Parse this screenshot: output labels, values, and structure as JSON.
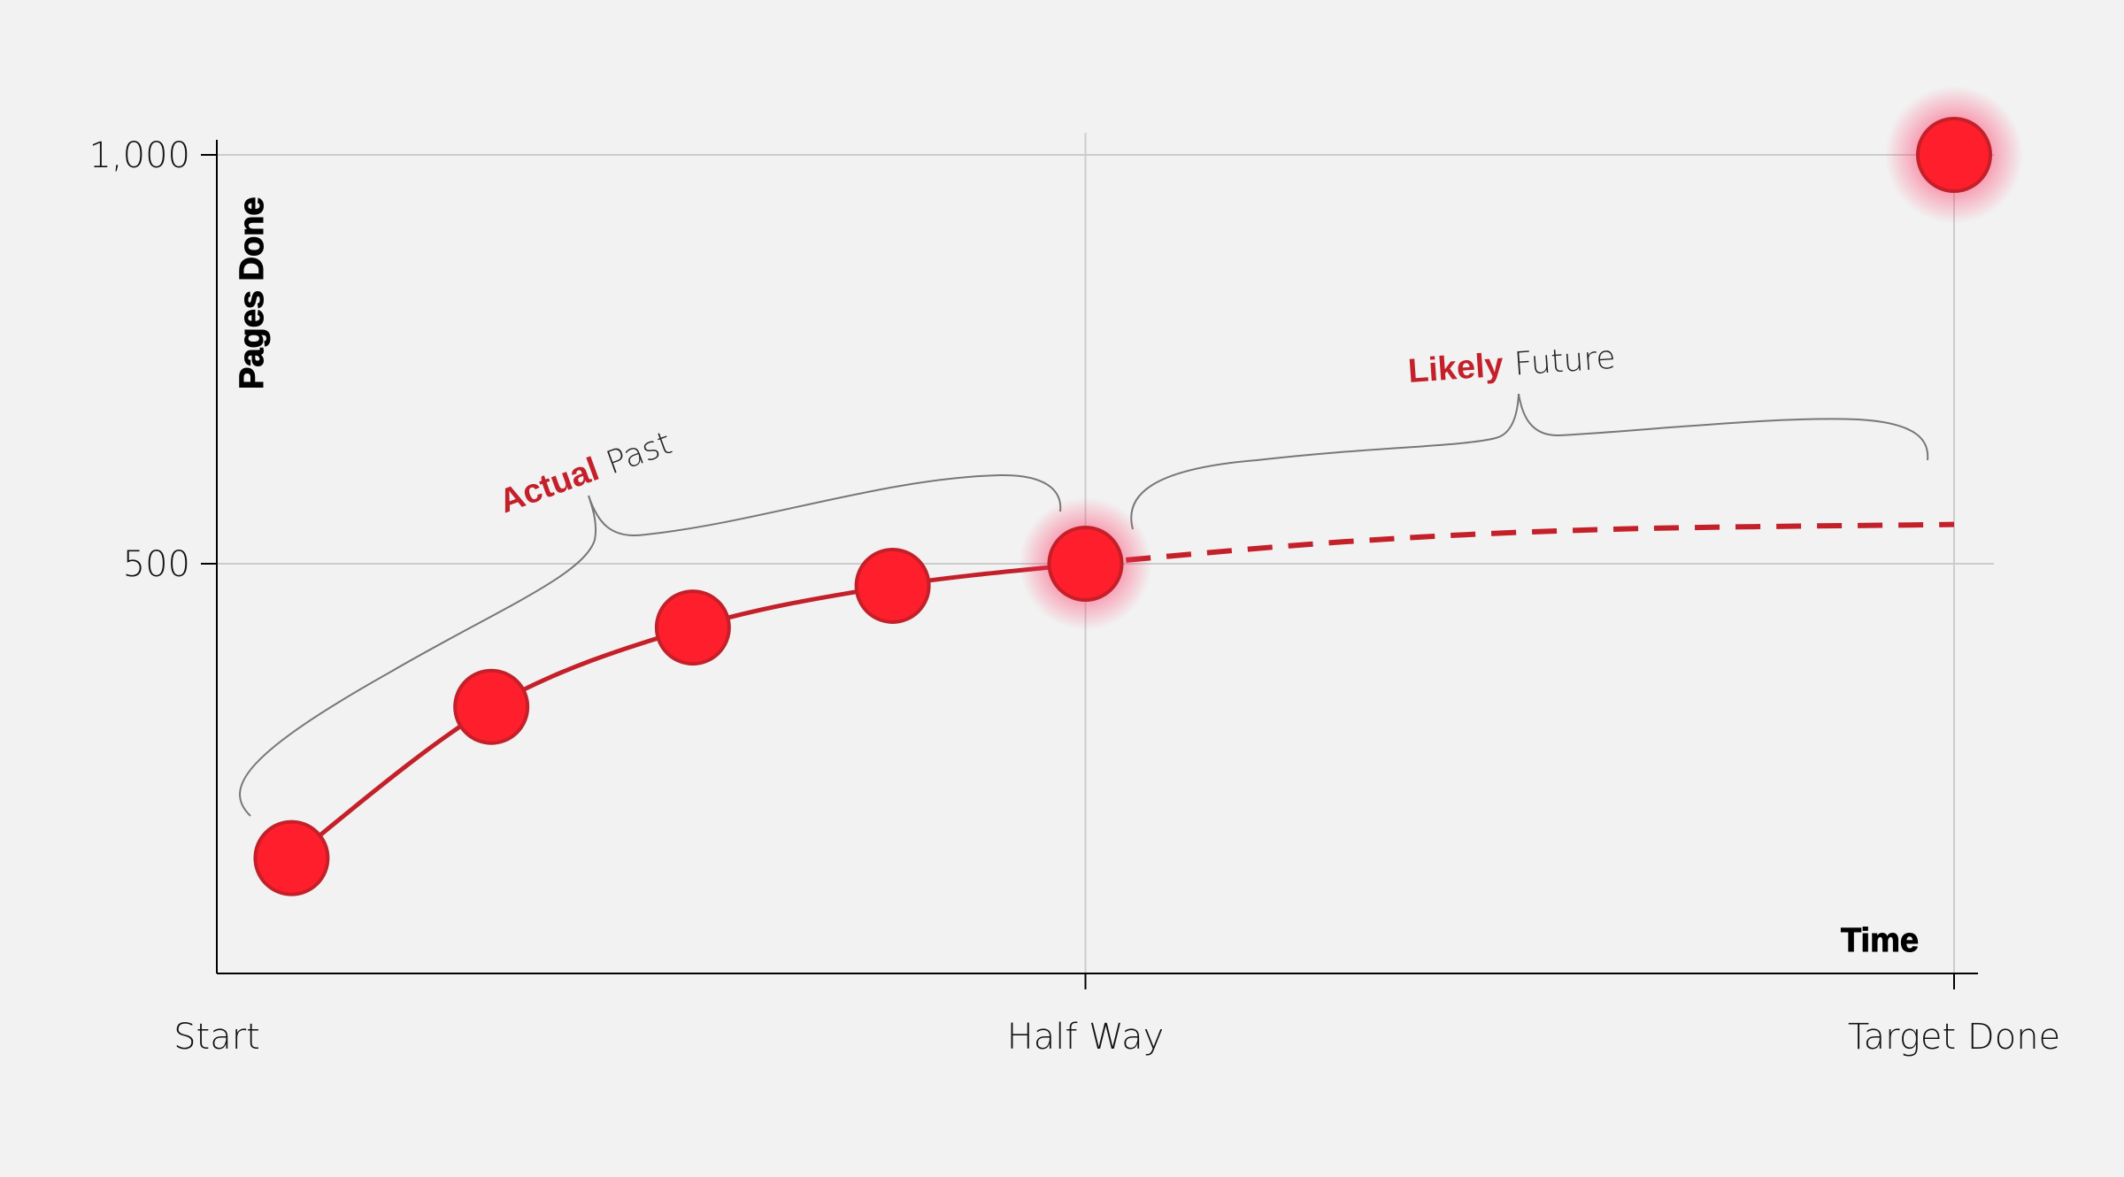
{
  "chart_data": {
    "type": "line",
    "xlabel": "Time",
    "ylabel": "Pages Done",
    "x_ticks": [
      {
        "value": 0,
        "label": "Start"
      },
      {
        "value": 0.5,
        "label": "Half Way"
      },
      {
        "value": 1,
        "label": "Target Done"
      }
    ],
    "y_ticks": [
      {
        "value": 500,
        "label": "500"
      },
      {
        "value": 1000,
        "label": "1,000"
      }
    ],
    "xlim": [
      0,
      1
    ],
    "ylim": [
      0,
      1000
    ],
    "grid": true,
    "series": [
      {
        "name": "Actual Past",
        "style": "solid",
        "markers": true,
        "x": [
          0.043,
          0.158,
          0.274,
          0.389,
          0.5
        ],
        "y": [
          140,
          325,
          422,
          473,
          500
        ]
      },
      {
        "name": "Likely Future",
        "style": "dashed",
        "markers": false,
        "x": [
          0.5,
          0.65,
          0.8,
          1.0
        ],
        "y": [
          500,
          527,
          542,
          548
        ]
      }
    ],
    "target_point": {
      "x": 1,
      "y": 1000
    },
    "annotations": [
      {
        "strong": "Actual",
        "light": "Past"
      },
      {
        "strong": "Likely",
        "light": "Future"
      }
    ],
    "colors": {
      "line": "#c4202a",
      "marker": "#ff1e2b",
      "grid": "#cccccc",
      "background": "#f2f2f2",
      "brace": "#777777"
    }
  }
}
